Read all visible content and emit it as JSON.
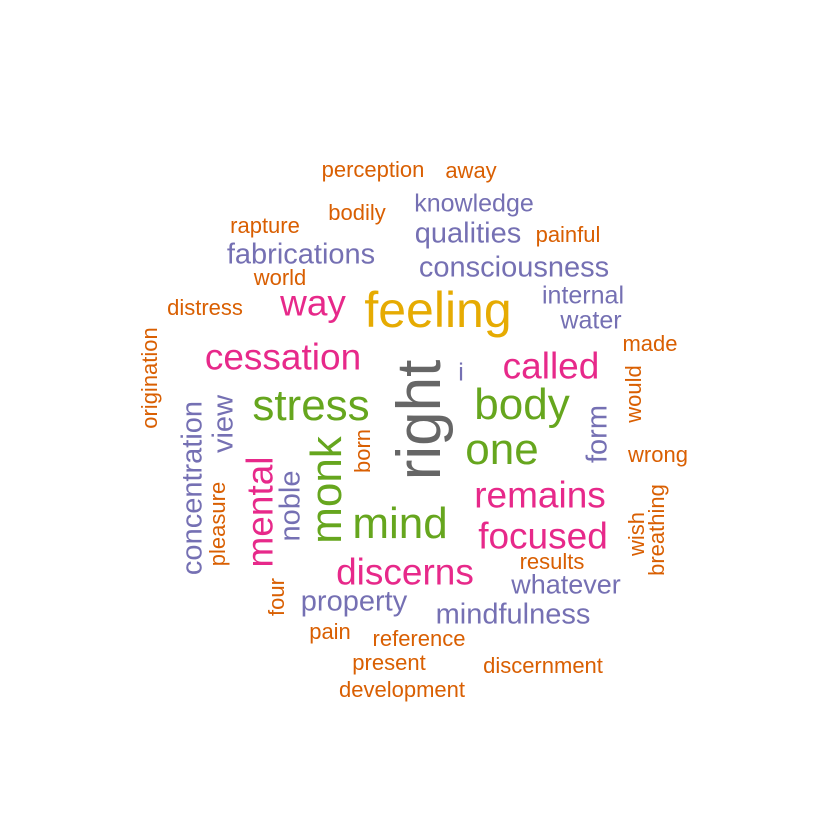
{
  "palette": {
    "gray": "#666666",
    "gold": "#e6ab02",
    "green": "#66a61e",
    "pink": "#e7298a",
    "purple": "#7570b3",
    "orange": "#d95f02"
  },
  "words": [
    {
      "id": "right",
      "text": "right",
      "color": "gray",
      "freq": 6,
      "rotated": true
    },
    {
      "id": "feeling",
      "text": "feeling",
      "color": "gold",
      "freq": 5,
      "rotated": false
    },
    {
      "id": "stress",
      "text": "stress",
      "color": "green",
      "freq": 4,
      "rotated": false
    },
    {
      "id": "body",
      "text": "body",
      "color": "green",
      "freq": 4,
      "rotated": false
    },
    {
      "id": "one",
      "text": "one",
      "color": "green",
      "freq": 4,
      "rotated": false
    },
    {
      "id": "mind",
      "text": "mind",
      "color": "green",
      "freq": 4,
      "rotated": false
    },
    {
      "id": "monk",
      "text": "monk",
      "color": "green",
      "freq": 4,
      "rotated": true
    },
    {
      "id": "cessation",
      "text": "cessation",
      "color": "pink",
      "freq": 3,
      "rotated": false
    },
    {
      "id": "called",
      "text": "called",
      "color": "pink",
      "freq": 3,
      "rotated": false
    },
    {
      "id": "remains",
      "text": "remains",
      "color": "pink",
      "freq": 3,
      "rotated": false
    },
    {
      "id": "focused",
      "text": "focused",
      "color": "pink",
      "freq": 3,
      "rotated": false
    },
    {
      "id": "discerns",
      "text": "discerns",
      "color": "pink",
      "freq": 3,
      "rotated": false
    },
    {
      "id": "mental",
      "text": "mental",
      "color": "pink",
      "freq": 3,
      "rotated": true
    },
    {
      "id": "way",
      "text": "way",
      "color": "pink",
      "freq": 3,
      "rotated": false
    },
    {
      "id": "consciousness",
      "text": "consciousness",
      "color": "purple",
      "freq": 2,
      "rotated": false
    },
    {
      "id": "qualities",
      "text": "qualities",
      "color": "purple",
      "freq": 2,
      "rotated": false
    },
    {
      "id": "fabrications",
      "text": "fabrications",
      "color": "purple",
      "freq": 2,
      "rotated": false
    },
    {
      "id": "knowledge",
      "text": "knowledge",
      "color": "purple",
      "freq": 2,
      "rotated": false
    },
    {
      "id": "internal",
      "text": "internal",
      "color": "purple",
      "freq": 2,
      "rotated": false
    },
    {
      "id": "water",
      "text": "water",
      "color": "purple",
      "freq": 2,
      "rotated": false
    },
    {
      "id": "i",
      "text": "i",
      "color": "purple",
      "freq": 2,
      "rotated": false
    },
    {
      "id": "form",
      "text": "form",
      "color": "purple",
      "freq": 2,
      "rotated": true
    },
    {
      "id": "view",
      "text": "view",
      "color": "purple",
      "freq": 2,
      "rotated": true
    },
    {
      "id": "concentration",
      "text": "concentration",
      "color": "purple",
      "freq": 2,
      "rotated": true
    },
    {
      "id": "noble",
      "text": "noble",
      "color": "purple",
      "freq": 2,
      "rotated": true
    },
    {
      "id": "property",
      "text": "property",
      "color": "purple",
      "freq": 2,
      "rotated": false
    },
    {
      "id": "mindfulness",
      "text": "mindfulness",
      "color": "purple",
      "freq": 2,
      "rotated": false
    },
    {
      "id": "whatever",
      "text": "whatever",
      "color": "purple",
      "freq": 2,
      "rotated": false
    },
    {
      "id": "perception",
      "text": "perception",
      "color": "orange",
      "freq": 1,
      "rotated": false
    },
    {
      "id": "away",
      "text": "away",
      "color": "orange",
      "freq": 1,
      "rotated": false
    },
    {
      "id": "bodily",
      "text": "bodily",
      "color": "orange",
      "freq": 1,
      "rotated": false
    },
    {
      "id": "rapture",
      "text": "rapture",
      "color": "orange",
      "freq": 1,
      "rotated": false
    },
    {
      "id": "painful",
      "text": "painful",
      "color": "orange",
      "freq": 1,
      "rotated": false
    },
    {
      "id": "world",
      "text": "world",
      "color": "orange",
      "freq": 1,
      "rotated": false
    },
    {
      "id": "distress",
      "text": "distress",
      "color": "orange",
      "freq": 1,
      "rotated": false
    },
    {
      "id": "made",
      "text": "made",
      "color": "orange",
      "freq": 1,
      "rotated": false
    },
    {
      "id": "origination",
      "text": "origination",
      "color": "orange",
      "freq": 1,
      "rotated": true
    },
    {
      "id": "would",
      "text": "would",
      "color": "orange",
      "freq": 1,
      "rotated": true
    },
    {
      "id": "wrong",
      "text": "wrong",
      "color": "orange",
      "freq": 1,
      "rotated": false
    },
    {
      "id": "born",
      "text": "born",
      "color": "orange",
      "freq": 1,
      "rotated": true
    },
    {
      "id": "pleasure",
      "text": "pleasure",
      "color": "orange",
      "freq": 1,
      "rotated": true
    },
    {
      "id": "wish",
      "text": "wish",
      "color": "orange",
      "freq": 1,
      "rotated": true
    },
    {
      "id": "breathing",
      "text": "breathing",
      "color": "orange",
      "freq": 1,
      "rotated": true
    },
    {
      "id": "results",
      "text": "results",
      "color": "orange",
      "freq": 1,
      "rotated": false
    },
    {
      "id": "four",
      "text": "four",
      "color": "orange",
      "freq": 1,
      "rotated": true
    },
    {
      "id": "pain",
      "text": "pain",
      "color": "orange",
      "freq": 1,
      "rotated": false
    },
    {
      "id": "reference",
      "text": "reference",
      "color": "orange",
      "freq": 1,
      "rotated": false
    },
    {
      "id": "present",
      "text": "present",
      "color": "orange",
      "freq": 1,
      "rotated": false
    },
    {
      "id": "discernment",
      "text": "discernment",
      "color": "orange",
      "freq": 1,
      "rotated": false
    },
    {
      "id": "development",
      "text": "development",
      "color": "orange",
      "freq": 1,
      "rotated": false
    }
  ]
}
